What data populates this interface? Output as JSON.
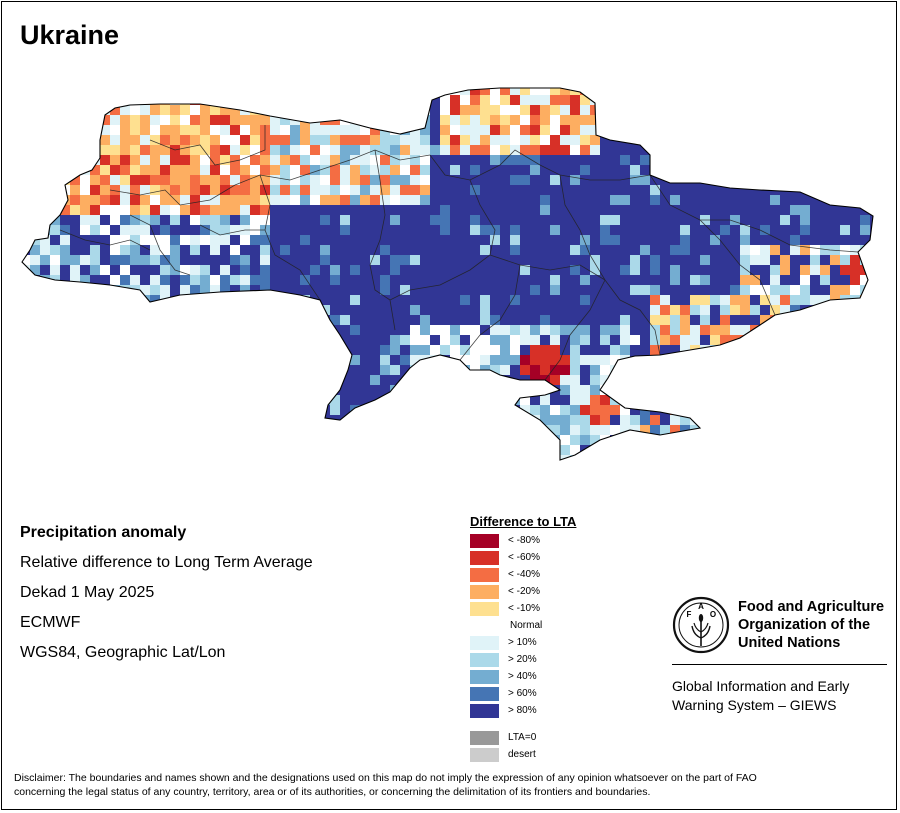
{
  "page": {
    "title": "Ukraine"
  },
  "info": {
    "heading": "Precipitation anomaly",
    "lines": [
      "Relative difference to Long Term Average",
      "Dekad 1 May 2025",
      "ECMWF",
      "WGS84, Geographic Lat/Lon"
    ]
  },
  "legend": {
    "title": "Difference to LTA",
    "items": [
      {
        "label": "< -80%",
        "color": "#a50026"
      },
      {
        "label": "< -60%",
        "color": "#d73027"
      },
      {
        "label": "< -40%",
        "color": "#f46d43"
      },
      {
        "label": "< -20%",
        "color": "#fdae61"
      },
      {
        "label": "< -10%",
        "color": "#fee090"
      },
      {
        "label": "Normal",
        "color": "#ffffff"
      },
      {
        "label": "> 10%",
        "color": "#e0f3f8"
      },
      {
        "label": "> 20%",
        "color": "#abd9e9"
      },
      {
        "label": "> 40%",
        "color": "#74add1"
      },
      {
        "label": "> 60%",
        "color": "#4575b4"
      },
      {
        "label": "> 80%",
        "color": "#313695"
      },
      {
        "label": "LTA=0",
        "color": "#999999"
      },
      {
        "label": "desert",
        "color": "#cccccc"
      }
    ]
  },
  "logo": {
    "org_lines": [
      "Food and Agriculture",
      "Organization of the",
      "United Nations"
    ],
    "emblem_letters": [
      "F",
      "A",
      "O"
    ],
    "giews_lines": [
      "Global Information and Early",
      "Warning System – GIEWS"
    ],
    "icon": "fao-emblem-icon"
  },
  "disclaimer": {
    "lines": [
      "Disclaimer: The boundaries and names shown and the designations used on this map do not imply the expression of any opinion whatsoever on the part of FAO",
      "concerning the legal status of any country, territory, area or of its authorities, or concerning the delimitation of its frontiers and boundaries."
    ]
  }
}
